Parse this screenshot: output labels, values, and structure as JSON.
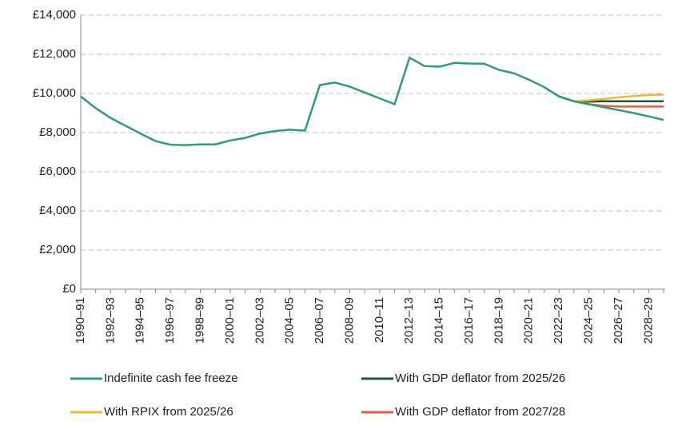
{
  "chart_data": {
    "type": "line",
    "categories": [
      "1990–91",
      null,
      "1992–93",
      null,
      "1994–95",
      null,
      "1996–97",
      null,
      "1998–99",
      null,
      "2000–01",
      null,
      "2002–03",
      null,
      "2004–05",
      null,
      "2006–07",
      null,
      "2008–09",
      null,
      "2010–11",
      null,
      "2012–13",
      null,
      "2014–15",
      null,
      "2016–17",
      null,
      "2018–19",
      null,
      "2020–21",
      null,
      "2022–23",
      null,
      "2024–25",
      null,
      "2026–27",
      null,
      "2028–29",
      null
    ],
    "series": [
      {
        "name": "Indefinite cash fee freeze",
        "color": "#2e9c76",
        "values": [
          9850,
          9250,
          8750,
          8350,
          7950,
          7570,
          7380,
          7360,
          7400,
          7400,
          7600,
          7730,
          7950,
          8080,
          8150,
          8100,
          10430,
          10560,
          10350,
          10050,
          9750,
          9450,
          11830,
          11400,
          11370,
          11560,
          11530,
          11520,
          11200,
          11030,
          10700,
          10330,
          9850,
          9600,
          9450,
          9300,
          9150,
          9000,
          8830,
          8650
        ]
      },
      {
        "name": "With GDP deflator from 2025/26",
        "color": "#22504a",
        "values": [
          null,
          null,
          null,
          null,
          null,
          null,
          null,
          null,
          null,
          null,
          null,
          null,
          null,
          null,
          null,
          null,
          null,
          null,
          null,
          null,
          null,
          null,
          null,
          null,
          null,
          null,
          null,
          null,
          null,
          null,
          null,
          null,
          9850,
          9600,
          9580,
          9600,
          9600,
          9600,
          9600,
          9600
        ]
      },
      {
        "name": "With RPIX from 2025/26",
        "color": "#f0b92d",
        "values": [
          null,
          null,
          null,
          null,
          null,
          null,
          null,
          null,
          null,
          null,
          null,
          null,
          null,
          null,
          null,
          null,
          null,
          null,
          null,
          null,
          null,
          null,
          null,
          null,
          null,
          null,
          null,
          null,
          null,
          null,
          null,
          null,
          9850,
          9600,
          9650,
          9720,
          9800,
          9870,
          9920,
          9940
        ]
      },
      {
        "name": "With GDP deflator from 2027/28",
        "color": "#e8603c",
        "values": [
          null,
          null,
          null,
          null,
          null,
          null,
          null,
          null,
          null,
          null,
          null,
          null,
          null,
          null,
          null,
          null,
          null,
          null,
          null,
          null,
          null,
          null,
          null,
          null,
          null,
          null,
          null,
          null,
          null,
          null,
          null,
          null,
          9850,
          9600,
          9450,
          9370,
          9330,
          9330,
          9330,
          9330
        ]
      }
    ],
    "ylim": [
      0,
      14000
    ],
    "yticks": [
      {
        "value": 0,
        "label": "£0"
      },
      {
        "value": 2000,
        "label": "£2,000"
      },
      {
        "value": 4000,
        "label": "£4,000"
      },
      {
        "value": 6000,
        "label": "£6,000"
      },
      {
        "value": 8000,
        "label": "£8,000"
      },
      {
        "value": 10000,
        "label": "£10,000"
      },
      {
        "value": 12000,
        "label": "£12,000"
      },
      {
        "value": 14000,
        "label": "£14,000"
      }
    ],
    "grid": true
  }
}
